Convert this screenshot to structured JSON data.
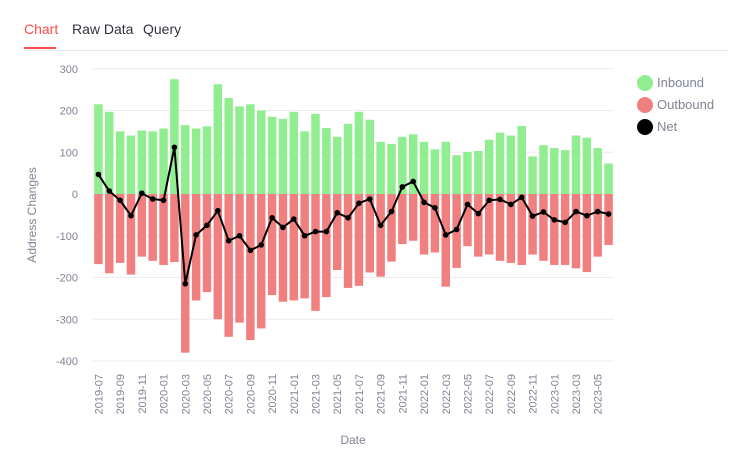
{
  "tabs": [
    {
      "label": "Chart"
    },
    {
      "label": "Raw Data"
    },
    {
      "label": "Query"
    }
  ],
  "legend": [
    {
      "label": "Inbound",
      "color": "#90ee90"
    },
    {
      "label": "Outbound",
      "color": "#f08080"
    },
    {
      "label": "Net",
      "color": "#000000"
    }
  ],
  "chart_data": {
    "type": "bar",
    "xlabel": "Date",
    "ylabel": "Address Changes",
    "ylim": [
      -400,
      300
    ],
    "yticks": [
      300,
      200,
      100,
      0,
      -100,
      -200,
      -300,
      -400
    ],
    "grid": true,
    "legend_position": "right",
    "x": [
      "2019-07",
      "2019-08",
      "2019-09",
      "2019-10",
      "2019-11",
      "2019-12",
      "2020-01",
      "2020-02",
      "2020-03",
      "2020-04",
      "2020-05",
      "2020-06",
      "2020-07",
      "2020-08",
      "2020-09",
      "2020-10",
      "2020-11",
      "2020-12",
      "2021-01",
      "2021-02",
      "2021-03",
      "2021-04",
      "2021-05",
      "2021-06",
      "2021-07",
      "2021-08",
      "2021-09",
      "2021-10",
      "2021-11",
      "2021-12",
      "2022-01",
      "2022-02",
      "2022-03",
      "2022-04",
      "2022-05",
      "2022-06",
      "2022-07",
      "2022-08",
      "2022-09",
      "2022-10",
      "2022-11",
      "2022-12",
      "2023-01",
      "2023-02",
      "2023-03",
      "2023-04",
      "2023-05",
      "2023-06"
    ],
    "xtick_labels": [
      "2019-07",
      "2019-09",
      "2019-11",
      "2020-01",
      "2020-03",
      "2020-05",
      "2020-07",
      "2020-09",
      "2020-11",
      "2021-01",
      "2021-03",
      "2021-05",
      "2021-07",
      "2021-09",
      "2021-11",
      "2022-01",
      "2022-03",
      "2022-05",
      "2022-07",
      "2022-09",
      "2022-11",
      "2023-01",
      "2023-03",
      "2023-05"
    ],
    "series": [
      {
        "name": "Inbound",
        "type": "bar",
        "color": "#90ee90",
        "values": [
          215,
          197,
          150,
          140,
          152,
          150,
          157,
          275,
          165,
          157,
          162,
          263,
          230,
          210,
          215,
          200,
          185,
          180,
          197,
          150,
          192,
          158,
          137,
          168,
          197,
          178,
          125,
          120,
          137,
          143,
          125,
          107,
          125,
          93,
          101,
          103,
          130,
          147,
          140,
          163,
          90,
          117,
          110,
          105,
          140,
          135,
          110,
          73
        ]
      },
      {
        "name": "Outbound",
        "type": "bar",
        "color": "#f08080",
        "values": [
          -168,
          -190,
          -165,
          -193,
          -150,
          -160,
          -170,
          -163,
          -380,
          -255,
          -235,
          -300,
          -342,
          -308,
          -350,
          -322,
          -242,
          -258,
          -255,
          -250,
          -280,
          -247,
          -182,
          -225,
          -220,
          -188,
          -198,
          -162,
          -120,
          -112,
          -145,
          -140,
          -222,
          -177,
          -125,
          -150,
          -145,
          -160,
          -165,
          -170,
          -145,
          -160,
          -170,
          -170,
          -178,
          -187,
          -150,
          -122
        ]
      },
      {
        "name": "Net",
        "type": "line",
        "color": "#000000",
        "values": [
          47,
          7,
          -15,
          -52,
          2,
          -12,
          -15,
          112,
          -215,
          -98,
          -75,
          -40,
          -112,
          -100,
          -135,
          -122,
          -57,
          -80,
          -60,
          -100,
          -90,
          -90,
          -45,
          -57,
          -22,
          -12,
          -75,
          -42,
          17,
          30,
          -20,
          -33,
          -98,
          -85,
          -25,
          -47,
          -15,
          -13,
          -25,
          -8,
          -53,
          -43,
          -62,
          -68,
          -42,
          -52,
          -42,
          -48
        ]
      }
    ]
  }
}
